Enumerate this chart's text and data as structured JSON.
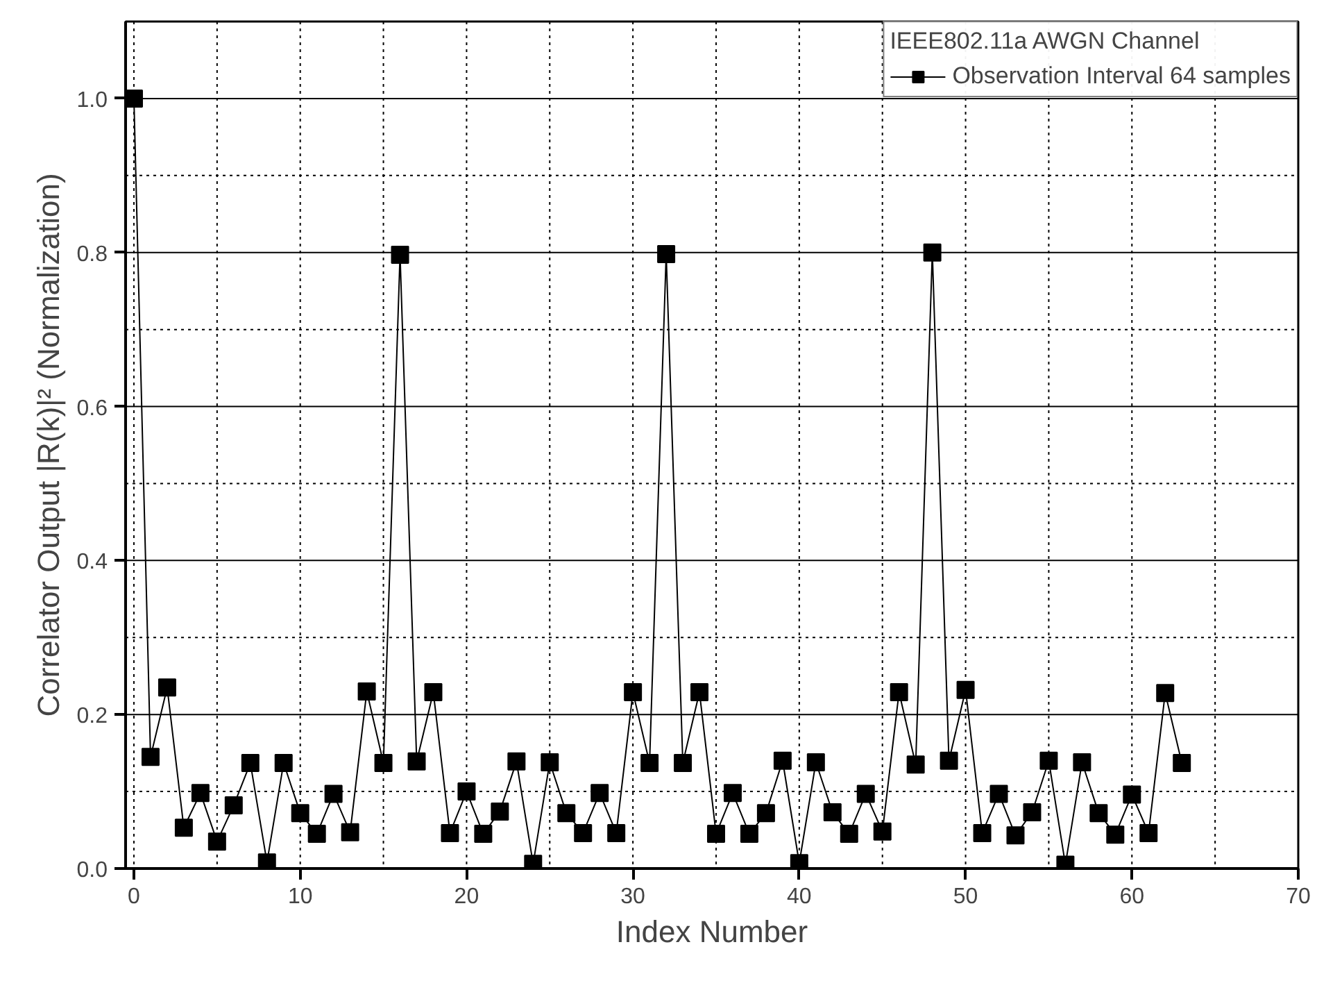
{
  "chart_data": {
    "type": "line",
    "xlabel": "Index Number",
    "ylabel": "Correlator Output |R(k)|² (Normalization)",
    "legend_title": "IEEE802.11a AWGN Channel",
    "x": [
      0,
      1,
      2,
      3,
      4,
      5,
      6,
      7,
      8,
      9,
      10,
      11,
      12,
      13,
      14,
      15,
      16,
      17,
      18,
      19,
      20,
      21,
      22,
      23,
      24,
      25,
      26,
      27,
      28,
      29,
      30,
      31,
      32,
      33,
      34,
      35,
      36,
      37,
      38,
      39,
      40,
      41,
      42,
      43,
      44,
      45,
      46,
      47,
      48,
      49,
      50,
      51,
      52,
      53,
      54,
      55,
      56,
      57,
      58,
      59,
      60,
      61,
      62,
      63
    ],
    "series": [
      {
        "name": "Observation Interval 64 samples",
        "color": "#000000",
        "values": [
          1.0,
          0.145,
          0.235,
          0.053,
          0.098,
          0.035,
          0.082,
          0.137,
          0.008,
          0.137,
          0.072,
          0.045,
          0.097,
          0.047,
          0.23,
          0.137,
          0.797,
          0.139,
          0.229,
          0.046,
          0.1,
          0.045,
          0.074,
          0.139,
          0.006,
          0.138,
          0.072,
          0.046,
          0.098,
          0.046,
          0.229,
          0.137,
          0.798,
          0.137,
          0.229,
          0.045,
          0.098,
          0.045,
          0.072,
          0.14,
          0.007,
          0.138,
          0.073,
          0.045,
          0.097,
          0.048,
          0.229,
          0.135,
          0.8,
          0.14,
          0.232,
          0.046,
          0.097,
          0.043,
          0.073,
          0.14,
          0.005,
          0.138,
          0.072,
          0.044,
          0.096,
          0.046,
          0.228,
          0.137
        ]
      }
    ],
    "xlim": [
      -0.5,
      70
    ],
    "xticks": [
      0,
      10,
      20,
      30,
      40,
      50,
      60,
      70
    ],
    "ylim": [
      0,
      1.1
    ],
    "yticks": [
      {
        "value": 0,
        "label": "0.0"
      },
      {
        "value": 0.2,
        "label": "0.2"
      },
      {
        "value": 0.4,
        "label": "0.4"
      },
      {
        "value": 0.6,
        "label": "0.6"
      },
      {
        "value": 0.8,
        "label": "0.8"
      },
      {
        "value": 1.0,
        "label": "1.0"
      }
    ],
    "grid": true,
    "legend": "top right",
    "marker": "square",
    "line_style": "solid"
  }
}
